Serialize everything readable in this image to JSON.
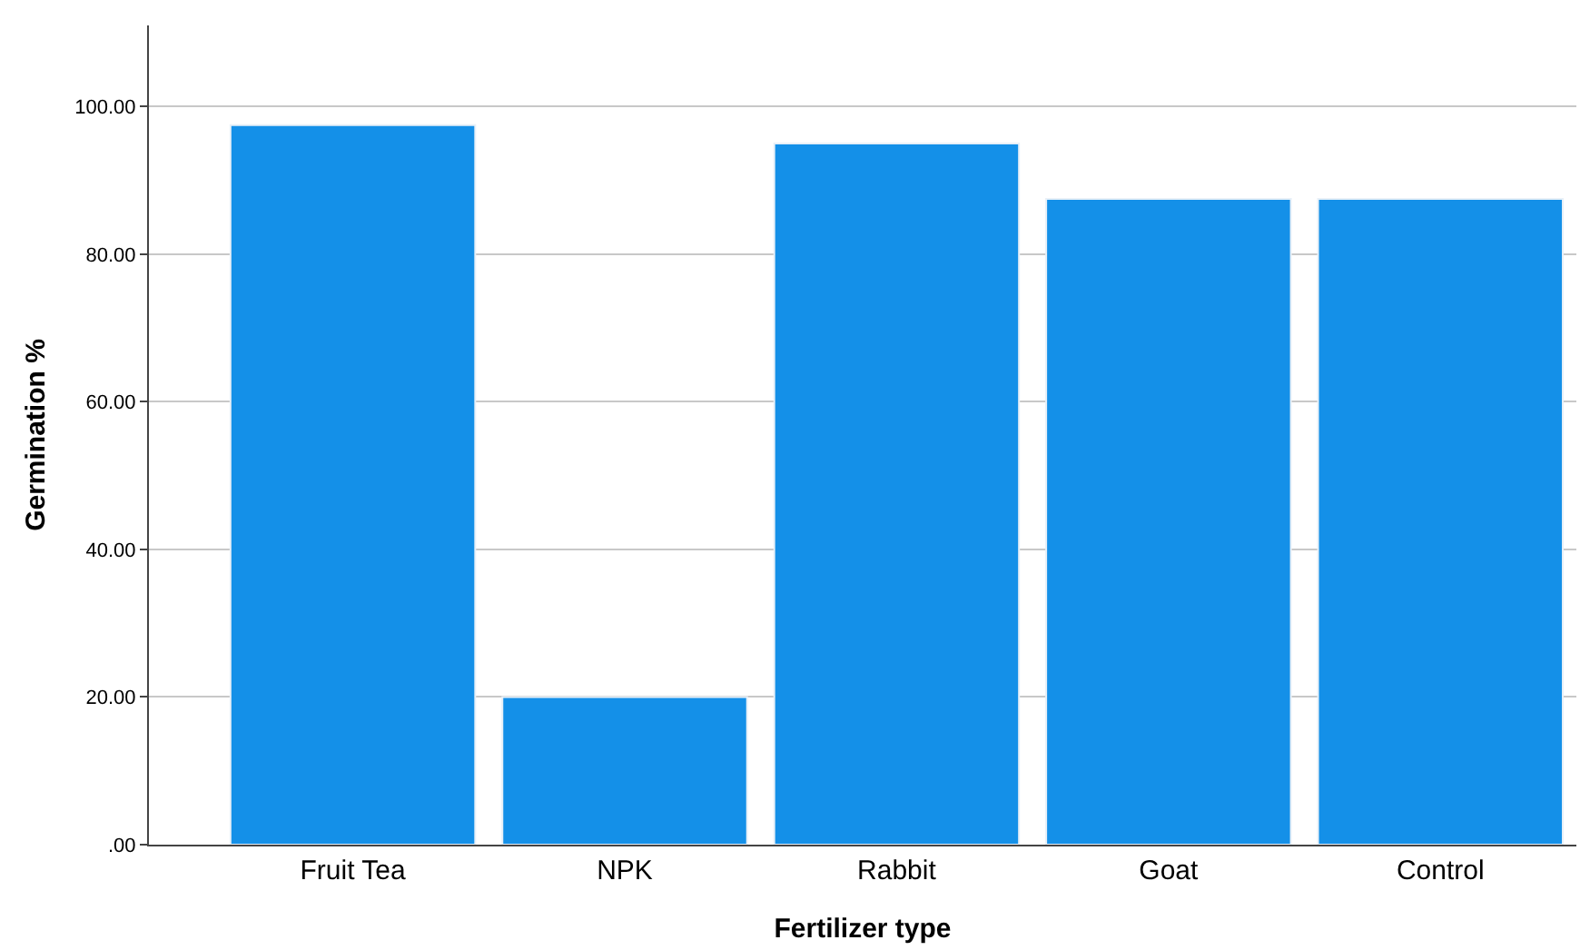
{
  "chart_data": {
    "type": "bar",
    "xlabel": "Fertilizer type",
    "ylabel": "Germination %",
    "categories": [
      "Fruit Tea",
      "NPK",
      "Rabbit",
      "Goat",
      "Control"
    ],
    "values": [
      97.5,
      20,
      95,
      87.5,
      87.5
    ],
    "color": "#1490e8",
    "ylim": [
      0,
      111
    ],
    "yticks": [
      {
        "value": 0,
        "label": ".00"
      },
      {
        "value": 20,
        "label": "20.00"
      },
      {
        "value": 40,
        "label": "40.00"
      },
      {
        "value": 60,
        "label": "60.00"
      },
      {
        "value": 80,
        "label": "80.00"
      },
      {
        "value": 100,
        "label": "100.00"
      }
    ],
    "grid": "y"
  }
}
